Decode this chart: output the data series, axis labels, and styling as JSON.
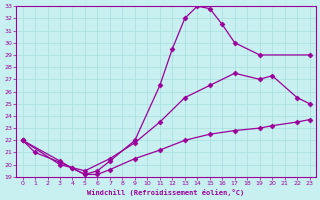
{
  "xlabel": "Windchill (Refroidissement éolien,°C)",
  "bg_color": "#c8f0f0",
  "line_color": "#9b009b",
  "grid_color": "#a8dede",
  "xlim": [
    -0.5,
    23.5
  ],
  "ylim": [
    19,
    33
  ],
  "yticks": [
    19,
    20,
    21,
    22,
    23,
    24,
    25,
    26,
    27,
    28,
    29,
    30,
    31,
    32,
    33
  ],
  "xticks": [
    0,
    1,
    2,
    3,
    4,
    5,
    6,
    7,
    8,
    9,
    10,
    11,
    12,
    13,
    14,
    15,
    16,
    17,
    18,
    19,
    20,
    21,
    22,
    23
  ],
  "line1_x": [
    0,
    1,
    3,
    4,
    5,
    6,
    7,
    9,
    11,
    12,
    13,
    14,
    15,
    16,
    17,
    19,
    23
  ],
  "line1_y": [
    22.0,
    21.0,
    20.2,
    19.7,
    19.2,
    19.5,
    20.3,
    22.0,
    26.5,
    29.5,
    32.0,
    33.0,
    32.8,
    31.5,
    30.0,
    29.0,
    29.0
  ],
  "line2_x": [
    0,
    3,
    5,
    7,
    9,
    11,
    13,
    15,
    17,
    19,
    20,
    22,
    23
  ],
  "line2_y": [
    22.0,
    20.0,
    19.5,
    20.5,
    21.8,
    23.5,
    25.5,
    26.5,
    27.5,
    27.0,
    27.3,
    25.5,
    25.0
  ],
  "line3_x": [
    0,
    3,
    4,
    5,
    6,
    7,
    9,
    11,
    13,
    15,
    17,
    19,
    20,
    22,
    23
  ],
  "line3_y": [
    22.0,
    20.3,
    19.7,
    19.2,
    19.2,
    19.6,
    20.5,
    21.2,
    22.0,
    22.5,
    22.8,
    23.0,
    23.2,
    23.5,
    23.7
  ]
}
